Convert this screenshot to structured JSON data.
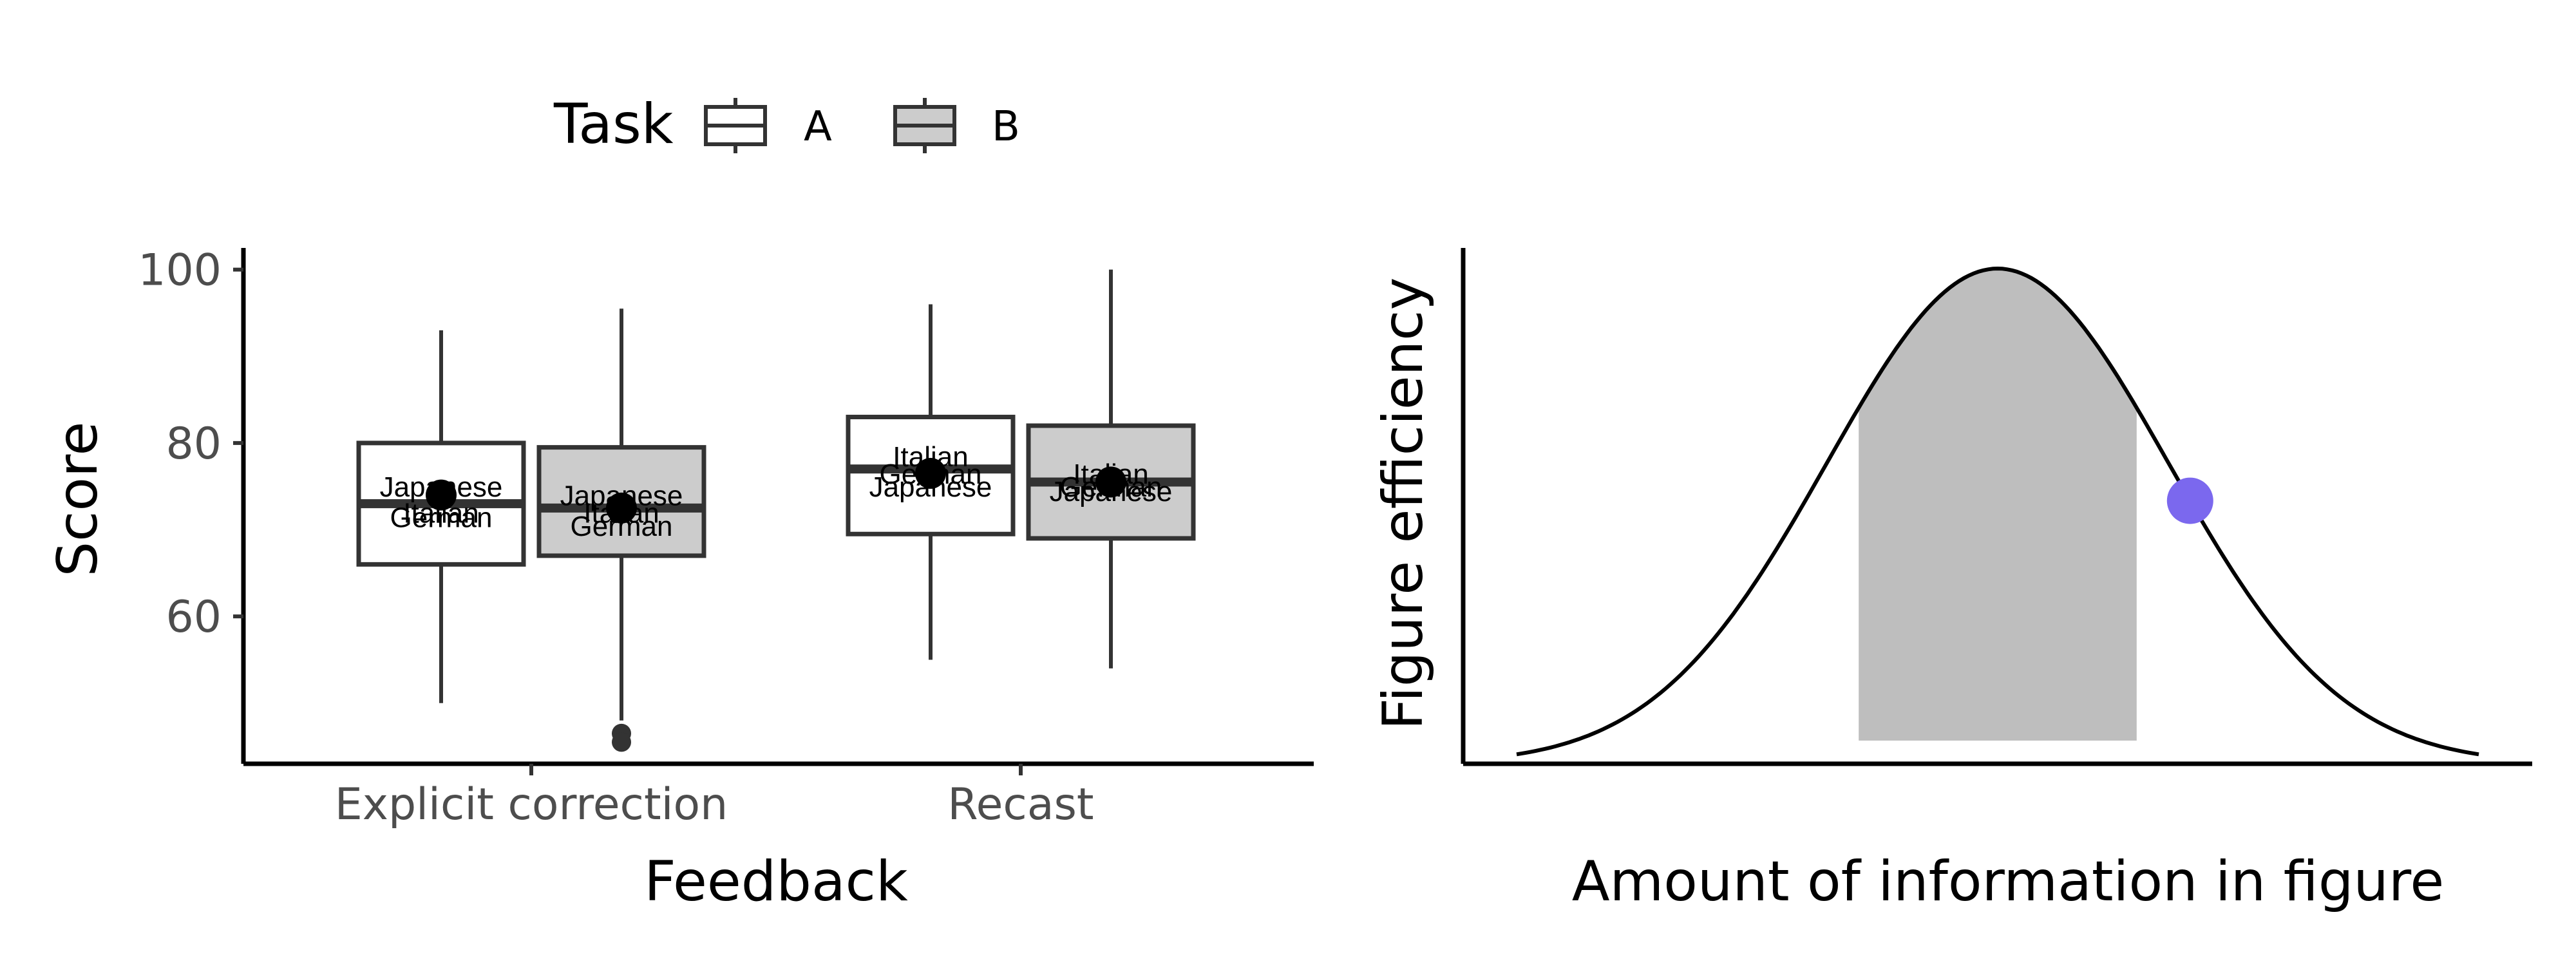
{
  "legend": {
    "title": "Task",
    "items": [
      {
        "label": "A",
        "fill": "#ffffff"
      },
      {
        "label": "B",
        "fill": "#cccccc"
      }
    ]
  },
  "chart_data": [
    {
      "type": "box",
      "xlabel": "Feedback",
      "ylabel": "Score",
      "categories": [
        "Explicit correction",
        "Recast"
      ],
      "yticks": [
        60,
        80,
        100
      ],
      "ylim": [
        43,
        102.5
      ],
      "grid": false,
      "legend_position": "top",
      "series": [
        {
          "name": "A",
          "fill": "#ffffff",
          "boxes": [
            {
              "category": "Explicit correction",
              "whisker_low": 50,
              "q1": 66,
              "median": 73,
              "q3": 80,
              "whisker_high": 93,
              "mean": 74,
              "outliers": []
            },
            {
              "category": "Recast",
              "whisker_low": 55,
              "q1": 69.5,
              "median": 77,
              "q3": 83,
              "whisker_high": 96,
              "mean": 76.5,
              "outliers": []
            }
          ]
        },
        {
          "name": "B",
          "fill": "#cccccc",
          "boxes": [
            {
              "category": "Explicit correction",
              "whisker_low": 48,
              "q1": 67,
              "median": 72.5,
              "q3": 79.5,
              "whisker_high": 95.5,
              "mean": 72.5,
              "outliers": [
                46.5,
                45.5
              ]
            },
            {
              "category": "Recast",
              "whisker_low": 54,
              "q1": 69,
              "median": 75.5,
              "q3": 82,
              "whisker_high": 100,
              "mean": 75.5,
              "outliers": []
            }
          ]
        }
      ],
      "point_labels": [
        {
          "series": "A",
          "category": "Explicit correction",
          "text": "Japanese",
          "y": 75
        },
        {
          "series": "A",
          "category": "Explicit correction",
          "text": "Italian",
          "y": 72
        },
        {
          "series": "A",
          "category": "Explicit correction",
          "text": "German",
          "y": 71.5
        },
        {
          "series": "B",
          "category": "Explicit correction",
          "text": "Japanese",
          "y": 74
        },
        {
          "series": "B",
          "category": "Explicit correction",
          "text": "Italian",
          "y": 72
        },
        {
          "series": "B",
          "category": "Explicit correction",
          "text": "German",
          "y": 70.5
        },
        {
          "series": "A",
          "category": "Recast",
          "text": "Italian",
          "y": 78.5
        },
        {
          "series": "A",
          "category": "Recast",
          "text": "German",
          "y": 76.5
        },
        {
          "series": "A",
          "category": "Recast",
          "text": "Japanese",
          "y": 75
        },
        {
          "series": "B",
          "category": "Recast",
          "text": "Italian",
          "y": 76.5
        },
        {
          "series": "B",
          "category": "Recast",
          "text": "German",
          "y": 75
        },
        {
          "series": "B",
          "category": "Recast",
          "text": "Japanese",
          "y": 74.5
        }
      ]
    },
    {
      "type": "line",
      "xlabel": "Amount of information in figure",
      "ylabel": "Figure efficiency",
      "xlim": [
        0,
        1
      ],
      "ylim": [
        0,
        1
      ],
      "curve": {
        "kind": "gaussian",
        "x_start": 0.05,
        "x_end": 0.95,
        "center": 0.5,
        "sd": 0.16,
        "peak": 0.96,
        "color": "#000000"
      },
      "shaded_region": {
        "x_from": 0.37,
        "x_to": 0.63,
        "color": "#bebebe"
      },
      "highlight_point": {
        "x": 0.68,
        "color": "#7b68ee"
      },
      "ticks": false,
      "grid": false
    }
  ]
}
